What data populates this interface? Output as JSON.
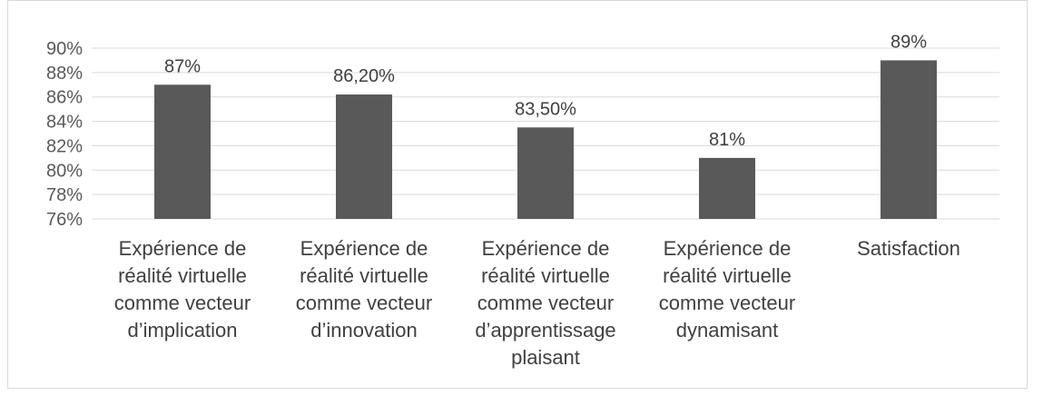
{
  "chart_data": {
    "type": "bar",
    "categories": [
      [
        "Expérience de",
        "réalité virtuelle",
        "comme vecteur",
        "d’implication"
      ],
      [
        "Expérience de",
        "réalité virtuelle",
        "comme vecteur",
        "d’innovation"
      ],
      [
        "Expérience de",
        "réalité virtuelle",
        "comme vecteur",
        "d’apprentissage",
        "plaisant"
      ],
      [
        "Expérience de",
        "réalité virtuelle",
        "comme vecteur",
        "dynamisant"
      ],
      [
        "Satisfaction"
      ]
    ],
    "values": [
      87,
      86.2,
      83.5,
      81,
      89
    ],
    "data_labels": [
      "87%",
      "86,20%",
      "83,50%",
      "81%",
      "89%"
    ],
    "yticks": [
      76,
      78,
      80,
      82,
      84,
      86,
      88,
      90
    ],
    "ytick_labels": [
      "76%",
      "78%",
      "80%",
      "82%",
      "84%",
      "86%",
      "88%",
      "90%"
    ],
    "ylim": [
      76,
      90
    ],
    "grid": true,
    "legend": "none",
    "title": "",
    "xlabel": "",
    "ylabel": "",
    "bar_color": "#595959",
    "grid_color": "#d9d9d9"
  }
}
